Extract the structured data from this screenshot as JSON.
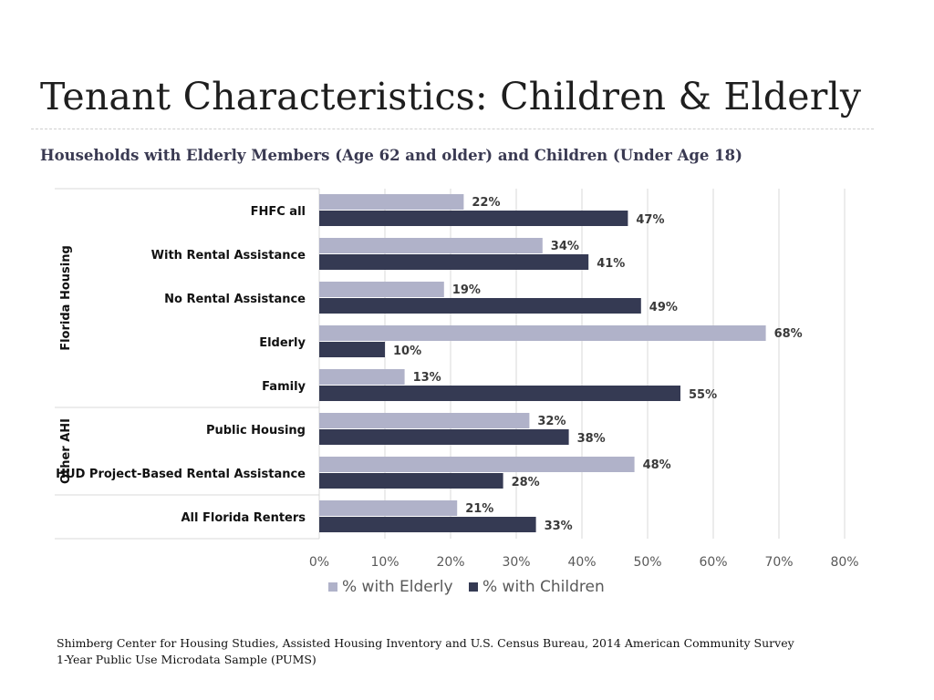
{
  "title": "Tenant Characteristics: Children & Elderly",
  "subtitle": "Households with Elderly Members (Age 62 and older) and Children (Under Age 18)",
  "source": [
    "Shimberg Center for Housing Studies, Assisted Housing Inventory and U.S. Census Bureau, 2014 American Community Survey",
    "1-Year Public Use Microdata Sample (PUMS)"
  ],
  "colors": {
    "elderly": "#b0b2c9",
    "children": "#353a53",
    "label": "#3a3a3a",
    "grid": "#d9d9d9",
    "axis": "#595959"
  },
  "chart_data": {
    "type": "bar",
    "orientation": "horizontal",
    "categories": [
      "FHFC all",
      "With Rental Assistance",
      "No Rental Assistance",
      "Elderly",
      "Family",
      "Public Housing",
      "HUD Project-Based Rental Assistance",
      "All Florida Renters"
    ],
    "groups": [
      {
        "label": "Florida Housing",
        "categories": [
          "FHFC all",
          "With Rental Assistance",
          "No Rental Assistance",
          "Elderly",
          "Family"
        ]
      },
      {
        "label": "Other AHI",
        "categories": [
          "Public Housing",
          "HUD Project-Based Rental Assistance"
        ]
      },
      {
        "label": "",
        "categories": [
          "All Florida Renters"
        ]
      }
    ],
    "series": [
      {
        "name": "% with Elderly",
        "values": [
          22,
          34,
          19,
          68,
          13,
          32,
          48,
          21
        ],
        "labels": [
          "22%",
          "34%",
          "19%",
          "68%",
          "13%",
          "32%",
          "48%",
          "21%"
        ]
      },
      {
        "name": "% with Children",
        "values": [
          47,
          41,
          49,
          10,
          55,
          38,
          28,
          33
        ],
        "labels": [
          "47%",
          "41%",
          "49%",
          "10%",
          "55%",
          "38%",
          "28%",
          "33%"
        ]
      }
    ],
    "xlim": [
      0,
      80
    ],
    "xticks": [
      "0%",
      "10%",
      "20%",
      "30%",
      "40%",
      "50%",
      "60%",
      "70%",
      "80%"
    ],
    "grid": true,
    "legend": "bottom"
  }
}
